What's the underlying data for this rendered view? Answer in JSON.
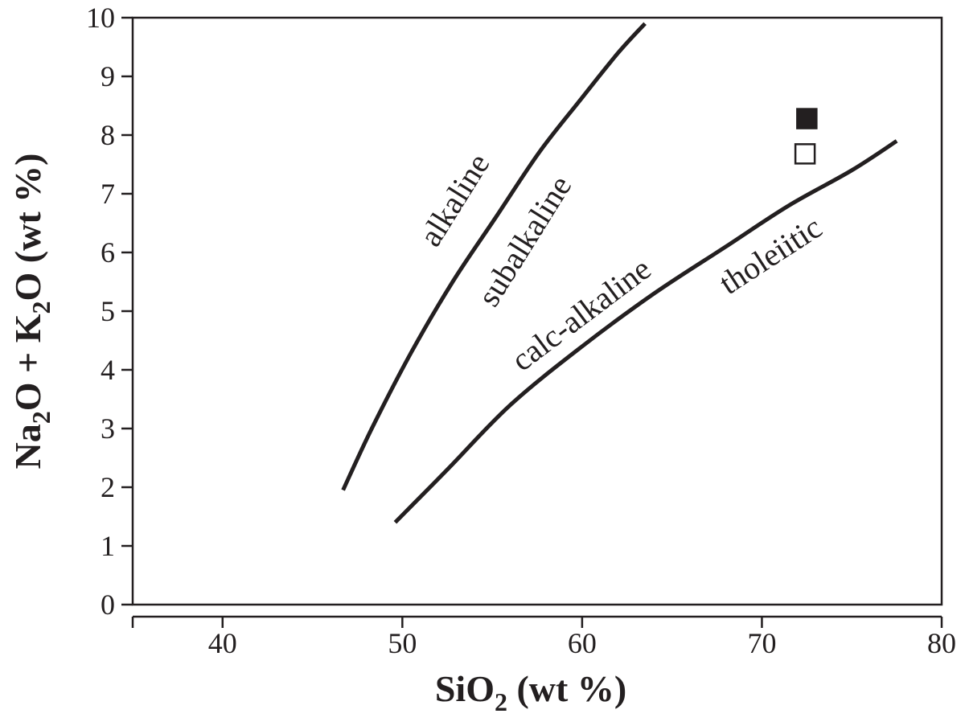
{
  "chart_data": {
    "type": "scatter",
    "xlabel": {
      "prefix": "SiO",
      "sub": "2",
      "suffix": " (wt %)"
    },
    "ylabel": {
      "p1": "Na",
      "s1": "2",
      "p2": "O + K",
      "s2": "2",
      "p3": "O (wt %)"
    },
    "xlim": [
      35,
      80
    ],
    "ylim": [
      0,
      10
    ],
    "x_ticks": [
      40,
      50,
      60,
      70,
      80
    ],
    "y_ticks": [
      0,
      1,
      2,
      3,
      4,
      5,
      6,
      7,
      8,
      9,
      10
    ],
    "x_tick_labels": [
      "40",
      "50",
      "60",
      "70",
      "80"
    ],
    "y_tick_labels": [
      "0",
      "1",
      "2",
      "3",
      "4",
      "5",
      "6",
      "7",
      "8",
      "9",
      "10"
    ],
    "grid": false,
    "boundaries": [
      {
        "id": "alkaline-subalkaline",
        "x": [
          46.7,
          48.3,
          50.5,
          52.8,
          55.2,
          57.6,
          59.9,
          62.0,
          63.5
        ],
        "y": [
          1.95,
          3.0,
          4.3,
          5.5,
          6.6,
          7.7,
          8.6,
          9.4,
          9.9
        ]
      },
      {
        "id": "calc-alkaline-tholeiitic",
        "x": [
          49.6,
          52.5,
          56.0,
          60.0,
          64.0,
          68.0,
          71.5,
          75.0,
          77.5
        ],
        "y": [
          1.4,
          2.3,
          3.4,
          4.4,
          5.3,
          6.1,
          6.8,
          7.4,
          7.9
        ]
      }
    ],
    "points": [
      {
        "x": 72.5,
        "y": 8.28,
        "marker": "filled-square"
      },
      {
        "x": 72.4,
        "y": 7.68,
        "marker": "open-square"
      }
    ],
    "annotations": [
      {
        "text": "alkaline",
        "x": 53.4,
        "y": 6.8,
        "angle": -58
      },
      {
        "text": "subalkaline",
        "x": 57.3,
        "y": 6.1,
        "angle": -58
      },
      {
        "text": "calc-alkaline",
        "x": 60.3,
        "y": 4.8,
        "angle": -37
      },
      {
        "text": "tholeiitic",
        "x": 70.8,
        "y": 5.8,
        "angle": -33
      }
    ],
    "colors": {
      "ink": "#231f20",
      "background": "#ffffff"
    }
  }
}
